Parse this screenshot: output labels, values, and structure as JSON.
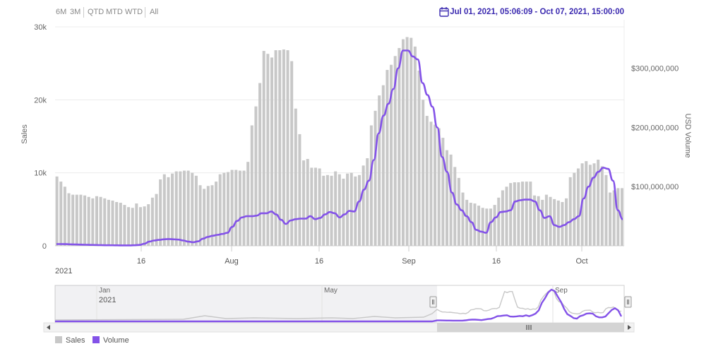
{
  "toolbar": {
    "zoom_buttons": [
      "6M",
      "3M",
      "QTD",
      "MTD",
      "WTD",
      "All"
    ],
    "date_range": "Jul 01, 2021, 05:06:09 - Oct 07, 2021, 15:00:00"
  },
  "colors": {
    "sales": "#c8c8c8",
    "volume": "#8352e8",
    "date_range": "#3b2ab0"
  },
  "icons": {
    "calendar": "calendar-icon",
    "navigator_handle": "grip-icon",
    "scroll_left": "arrow-left-icon",
    "scroll_right": "arrow-right-icon"
  },
  "chart_data": {
    "type": "bar",
    "title": "",
    "x_tick_labels": [
      "16",
      "Aug",
      "16",
      "Sep",
      "16",
      "Oct"
    ],
    "x_year_label": "2021",
    "y_left": {
      "label": "Sales",
      "ticks": [
        "0",
        "10k",
        "20k",
        "30k"
      ],
      "range": [
        0,
        30000
      ]
    },
    "y_right": {
      "label": "USD Volume",
      "ticks": [
        "$100,000,000",
        "$200,000,000",
        "$300,000,000"
      ],
      "range": [
        0,
        370000000
      ]
    },
    "series": [
      {
        "name": "Sales",
        "type": "bar",
        "axis": "left",
        "values": [
          9500,
          8800,
          8100,
          7200,
          7000,
          7000,
          7000,
          6900,
          6700,
          6500,
          6800,
          6700,
          6500,
          6300,
          6200,
          6000,
          5900,
          5600,
          5300,
          5200,
          5800,
          5300,
          5400,
          5700,
          6600,
          7100,
          9100,
          9800,
          9400,
          9900,
          10200,
          10200,
          10300,
          10300,
          10000,
          9600,
          8300,
          7800,
          8200,
          8300,
          8800,
          9800,
          10000,
          10100,
          10400,
          10400,
          10300,
          10300,
          11500,
          16500,
          19100,
          22300,
          26700,
          26300,
          25800,
          26800,
          26800,
          26900,
          26800,
          25300,
          18800,
          15300,
          11700,
          11900,
          10700,
          10700,
          10600,
          9600,
          9700,
          9600,
          10200,
          9800,
          9200,
          9900,
          10000,
          9500,
          9700,
          11000,
          12000,
          16500,
          18500,
          20600,
          22000,
          24100,
          24800,
          26000,
          27100,
          28300,
          28600,
          28500,
          27300,
          24000,
          20000,
          17800,
          17000,
          16600,
          16100,
          14800,
          13100,
          12500,
          10800,
          9300,
          7300,
          6300,
          5900,
          5800,
          5500,
          5200,
          5100,
          5100,
          5600,
          6600,
          7600,
          8100,
          8600,
          8700,
          8700,
          8800,
          8800,
          8800,
          6900,
          6800,
          6300,
          7000,
          6700,
          6400,
          6200,
          6000,
          6500,
          9400,
          10000,
          10600,
          11300,
          11600,
          11100,
          11300,
          11800,
          10900,
          9700,
          7300,
          7600,
          7900,
          7900
        ]
      },
      {
        "name": "Volume",
        "type": "line",
        "axis": "right",
        "values": [
          3000000,
          3000000,
          2900000,
          2500000,
          2300000,
          2000000,
          1800000,
          1600000,
          1400000,
          1200000,
          1000000,
          900000,
          800000,
          700000,
          700000,
          700000,
          900000,
          1500000,
          3500000,
          7000000,
          9000000,
          10000000,
          11000000,
          11500000,
          11000000,
          10500000,
          9000000,
          7000000,
          6000000,
          7500000,
          12000000,
          15000000,
          17000000,
          18500000,
          20000000,
          22000000,
          32000000,
          42000000,
          48000000,
          50000000,
          50000000,
          51000000,
          55000000,
          55000000,
          58000000,
          53000000,
          44000000,
          37000000,
          43000000,
          45000000,
          46000000,
          46000000,
          50000000,
          45000000,
          47000000,
          53000000,
          57000000,
          55000000,
          48000000,
          53000000,
          59000000,
          58000000,
          75000000,
          95000000,
          110000000,
          145000000,
          190000000,
          220000000,
          240000000,
          265000000,
          300000000,
          330000000,
          330000000,
          320000000,
          315000000,
          275000000,
          255000000,
          235000000,
          200000000,
          150000000,
          125000000,
          90000000,
          70000000,
          60000000,
          50000000,
          40000000,
          27000000,
          24000000,
          22000000,
          40000000,
          48000000,
          57000000,
          58000000,
          60000000,
          75000000,
          77000000,
          78000000,
          78000000,
          75000000,
          60000000,
          47000000,
          50000000,
          35000000,
          32000000,
          35000000,
          40000000,
          45000000,
          50000000,
          80000000,
          100000000,
          115000000,
          125000000,
          132000000,
          130000000,
          110000000,
          60000000,
          45000000
        ]
      }
    ],
    "navigator": {
      "tick_labels": [
        "Jan",
        "May",
        "Sep"
      ],
      "year_label": "2021",
      "series_names": [
        "Sales",
        "Volume"
      ]
    },
    "legend": {
      "placement": "bottom-left",
      "items": [
        "Sales",
        "Volume"
      ]
    },
    "grid": true
  }
}
